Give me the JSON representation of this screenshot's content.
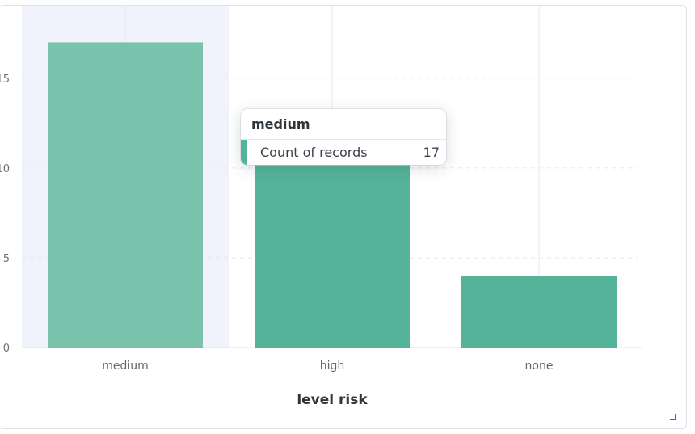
{
  "chart_data": {
    "type": "bar",
    "categories": [
      "medium",
      "high",
      "none"
    ],
    "values": [
      17,
      12,
      4
    ],
    "ylim": [
      0,
      19
    ],
    "yticks": [
      0,
      5,
      10,
      15
    ],
    "xlabel": "level risk",
    "ylabel": "",
    "grid": true,
    "highlighted_category": "medium",
    "colors": {
      "bar": "#55b399",
      "bar_hover": "#79c3ad",
      "hover_band": "#f1f3fc"
    }
  },
  "tooltip": {
    "title": "medium",
    "series_label": "Count of records",
    "value": "17"
  }
}
